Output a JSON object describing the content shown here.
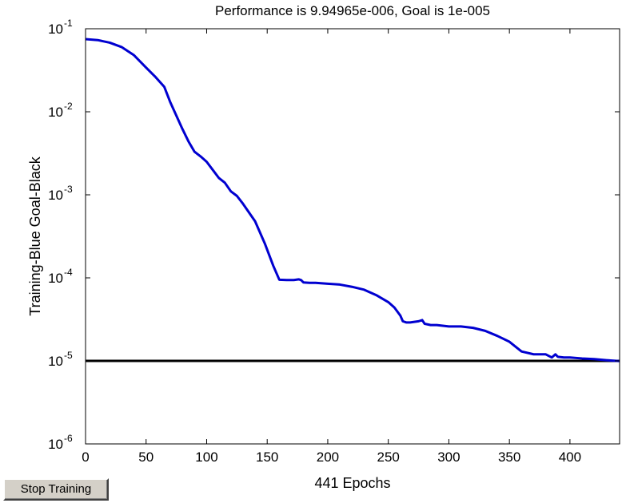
{
  "controls": {
    "stop_training_label": "Stop Training"
  },
  "chart_data": {
    "type": "line",
    "title": "Performance is 9.94965e-006, Goal is 1e-005",
    "xlabel": "441 Epochs",
    "ylabel": "Training-Blue  Goal-Black",
    "xlim": [
      0,
      441
    ],
    "ylim": [
      1e-06,
      0.1
    ],
    "yscale": "log",
    "grid": false,
    "x_ticks": [
      0,
      50,
      100,
      150,
      200,
      250,
      300,
      350,
      400
    ],
    "y_ticks": [
      {
        "value": 1e-06,
        "base": "10",
        "exp": "-6"
      },
      {
        "value": 1e-05,
        "base": "10",
        "exp": "-5"
      },
      {
        "value": 0.0001,
        "base": "10",
        "exp": "-4"
      },
      {
        "value": 0.001,
        "base": "10",
        "exp": "-3"
      },
      {
        "value": 0.01,
        "base": "10",
        "exp": "-2"
      },
      {
        "value": 0.1,
        "base": "10",
        "exp": "-1"
      }
    ],
    "series": [
      {
        "name": "Training",
        "color": "#0000d0",
        "x": [
          0,
          10,
          20,
          30,
          40,
          50,
          58,
          65,
          70,
          80,
          85,
          90,
          95,
          100,
          105,
          110,
          115,
          120,
          125,
          130,
          140,
          148,
          155,
          160,
          166,
          172,
          176,
          178,
          180,
          185,
          190,
          200,
          210,
          220,
          230,
          240,
          250,
          255,
          260,
          262,
          265,
          268,
          275,
          278,
          280,
          285,
          290,
          300,
          310,
          320,
          330,
          340,
          350,
          360,
          370,
          380,
          385,
          388,
          390,
          395,
          400,
          410,
          420,
          430,
          441
        ],
        "y": [
          0.075,
          0.073,
          0.068,
          0.06,
          0.048,
          0.034,
          0.026,
          0.02,
          0.013,
          0.0062,
          0.0044,
          0.0033,
          0.0029,
          0.0025,
          0.002,
          0.0016,
          0.0014,
          0.0011,
          0.00097,
          0.00078,
          0.00048,
          0.00026,
          0.00014,
          9.5e-05,
          9.4e-05,
          9.4e-05,
          9.6e-05,
          9.4e-05,
          8.8e-05,
          8.7e-05,
          8.7e-05,
          8.5e-05,
          8.3e-05,
          7.8e-05,
          7.2e-05,
          6.2e-05,
          5.1e-05,
          4.4e-05,
          3.5e-05,
          3e-05,
          2.9e-05,
          2.9e-05,
          3e-05,
          3.1e-05,
          2.8e-05,
          2.7e-05,
          2.7e-05,
          2.6e-05,
          2.6e-05,
          2.5e-05,
          2.3e-05,
          2e-05,
          1.7e-05,
          1.3e-05,
          1.2e-05,
          1.2e-05,
          1.1e-05,
          1.2e-05,
          1.12e-05,
          1.1e-05,
          1.1e-05,
          1.07e-05,
          1.05e-05,
          1.02e-05,
          9.95e-06
        ]
      },
      {
        "name": "Goal",
        "color": "#000000",
        "x": [
          0,
          441
        ],
        "y": [
          1e-05,
          1e-05
        ]
      }
    ]
  }
}
